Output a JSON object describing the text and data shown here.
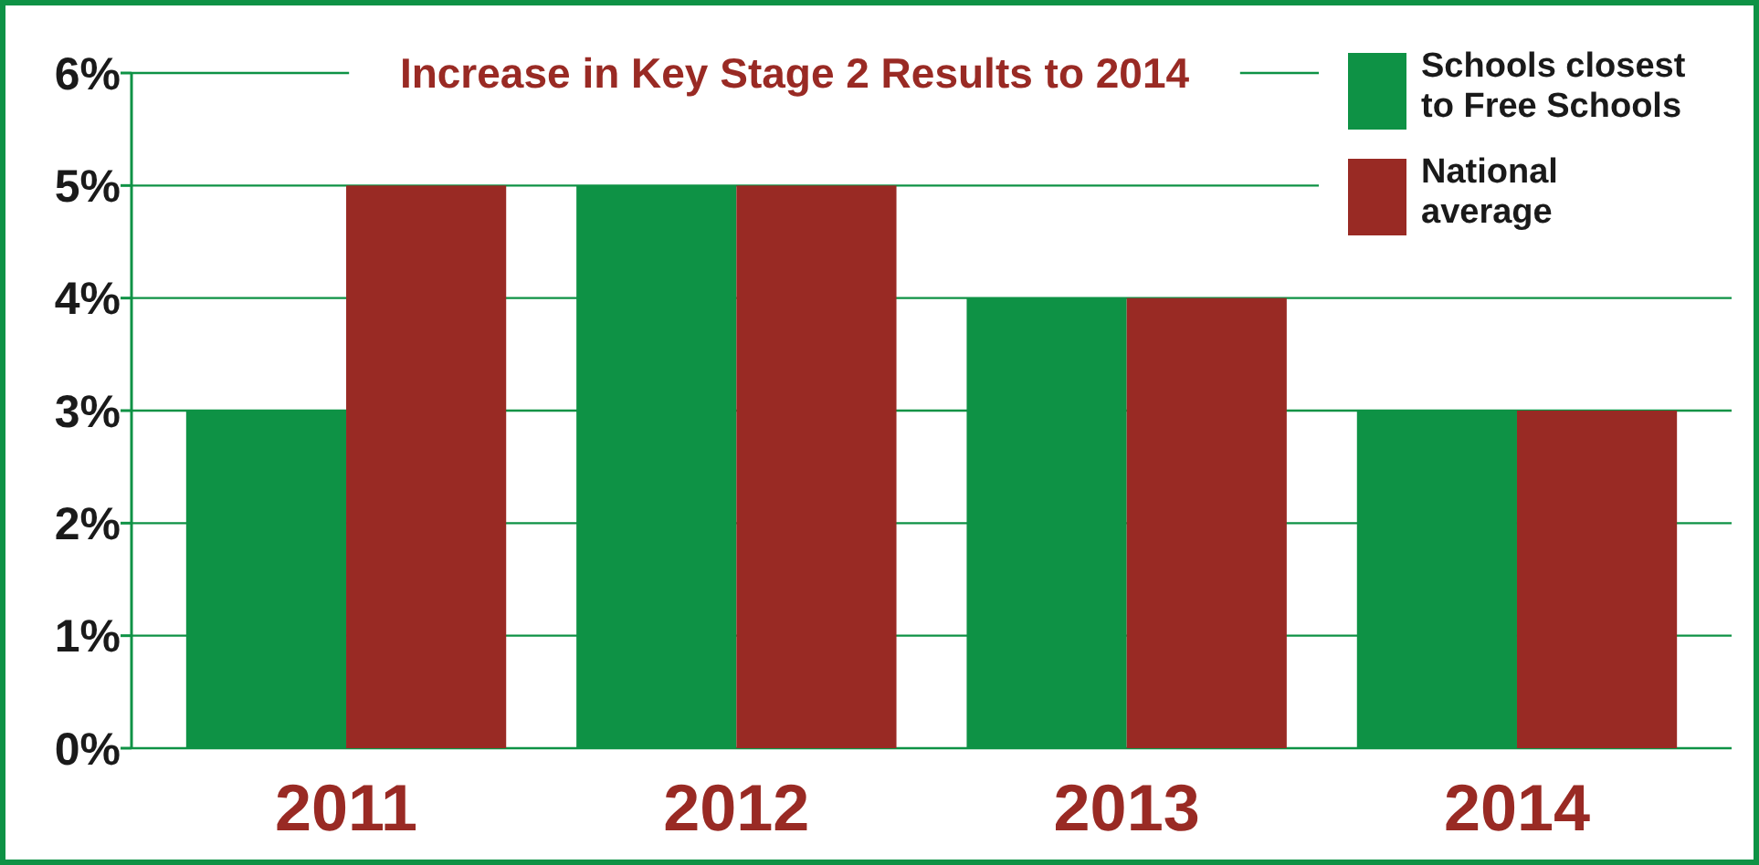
{
  "chart_data": {
    "type": "bar",
    "title": "Increase in Key Stage 2 Results to 2014",
    "categories": [
      "2011",
      "2012",
      "2013",
      "2014"
    ],
    "series": [
      {
        "name": "Schools closest to Free Schools",
        "color": "#0e9245",
        "values": [
          3,
          5,
          4,
          3
        ]
      },
      {
        "name": "National average",
        "color": "#992a24",
        "values": [
          5,
          5,
          4,
          3
        ]
      }
    ],
    "ylim": [
      0,
      6
    ],
    "yticks": [
      {
        "value": 0,
        "label": "0%"
      },
      {
        "value": 1,
        "label": "1%"
      },
      {
        "value": 2,
        "label": "2%"
      },
      {
        "value": 3,
        "label": "3%"
      },
      {
        "value": 4,
        "label": "4%"
      },
      {
        "value": 5,
        "label": "5%"
      },
      {
        "value": 6,
        "label": "6%"
      }
    ],
    "grid": "y",
    "legend": "top right"
  }
}
